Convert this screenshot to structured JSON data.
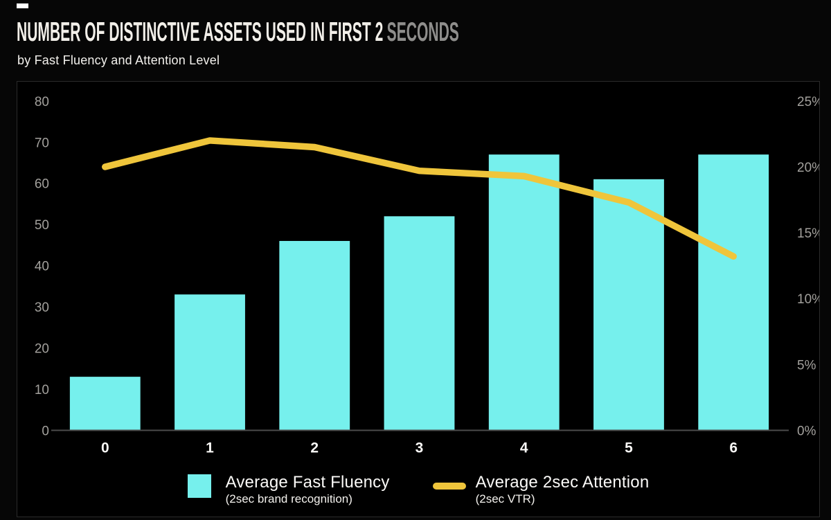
{
  "header": {
    "title_main": "NUMBER OF DISTINCTIVE ASSETS USED IN FIRST 2",
    "title_accent": "SECONDS",
    "subtitle": "by Fast Fluency and Attention Level"
  },
  "chart_data": {
    "type": "combo",
    "categories": [
      "0",
      "1",
      "2",
      "3",
      "4",
      "5",
      "6"
    ],
    "series": [
      {
        "name": "Average Fast Fluency",
        "chart_type": "bar",
        "axis": "left",
        "values": [
          13,
          33,
          46,
          52,
          67,
          61,
          67
        ],
        "color": "#76F0ED"
      },
      {
        "name": "Average 2sec Attention",
        "chart_type": "line",
        "axis": "right",
        "values": [
          20,
          22,
          21.5,
          19.7,
          19.3,
          17.3,
          13.2
        ],
        "unit": "%",
        "color": "#EFC53B"
      }
    ],
    "left_axis": {
      "min": 0,
      "max": 80,
      "step": 10,
      "ticks": [
        "80",
        "70",
        "60",
        "50",
        "40",
        "30",
        "20",
        "10",
        "0"
      ]
    },
    "right_axis": {
      "min": 0,
      "max": 25,
      "step": 5,
      "ticks": [
        "25%",
        "20%",
        "15%",
        "10%",
        "5%",
        "0%"
      ]
    },
    "grid": false,
    "legend_position": "bottom",
    "title": "NUMBER OF DISTINCTIVE ASSETS USED IN FIRST 2 SECONDS",
    "xlabel": "",
    "ylabel": ""
  },
  "legend": {
    "items": [
      {
        "label": "Average Fast Fluency",
        "sublabel": "(2sec brand recognition)",
        "swatch": "square",
        "color": "#76F0ED"
      },
      {
        "label": "Average 2sec Attention",
        "sublabel": "(2sec VTR)",
        "swatch": "line",
        "color": "#EFC53B"
      }
    ]
  },
  "colors": {
    "bar": "#76F0ED",
    "line": "#EFC53B",
    "axis_line": "#4C4C4C",
    "tick_label": "#A3A19D",
    "x_label": "#FAF9F7",
    "panel_border": "#2B2B2B",
    "panel_bg": "#000000"
  }
}
